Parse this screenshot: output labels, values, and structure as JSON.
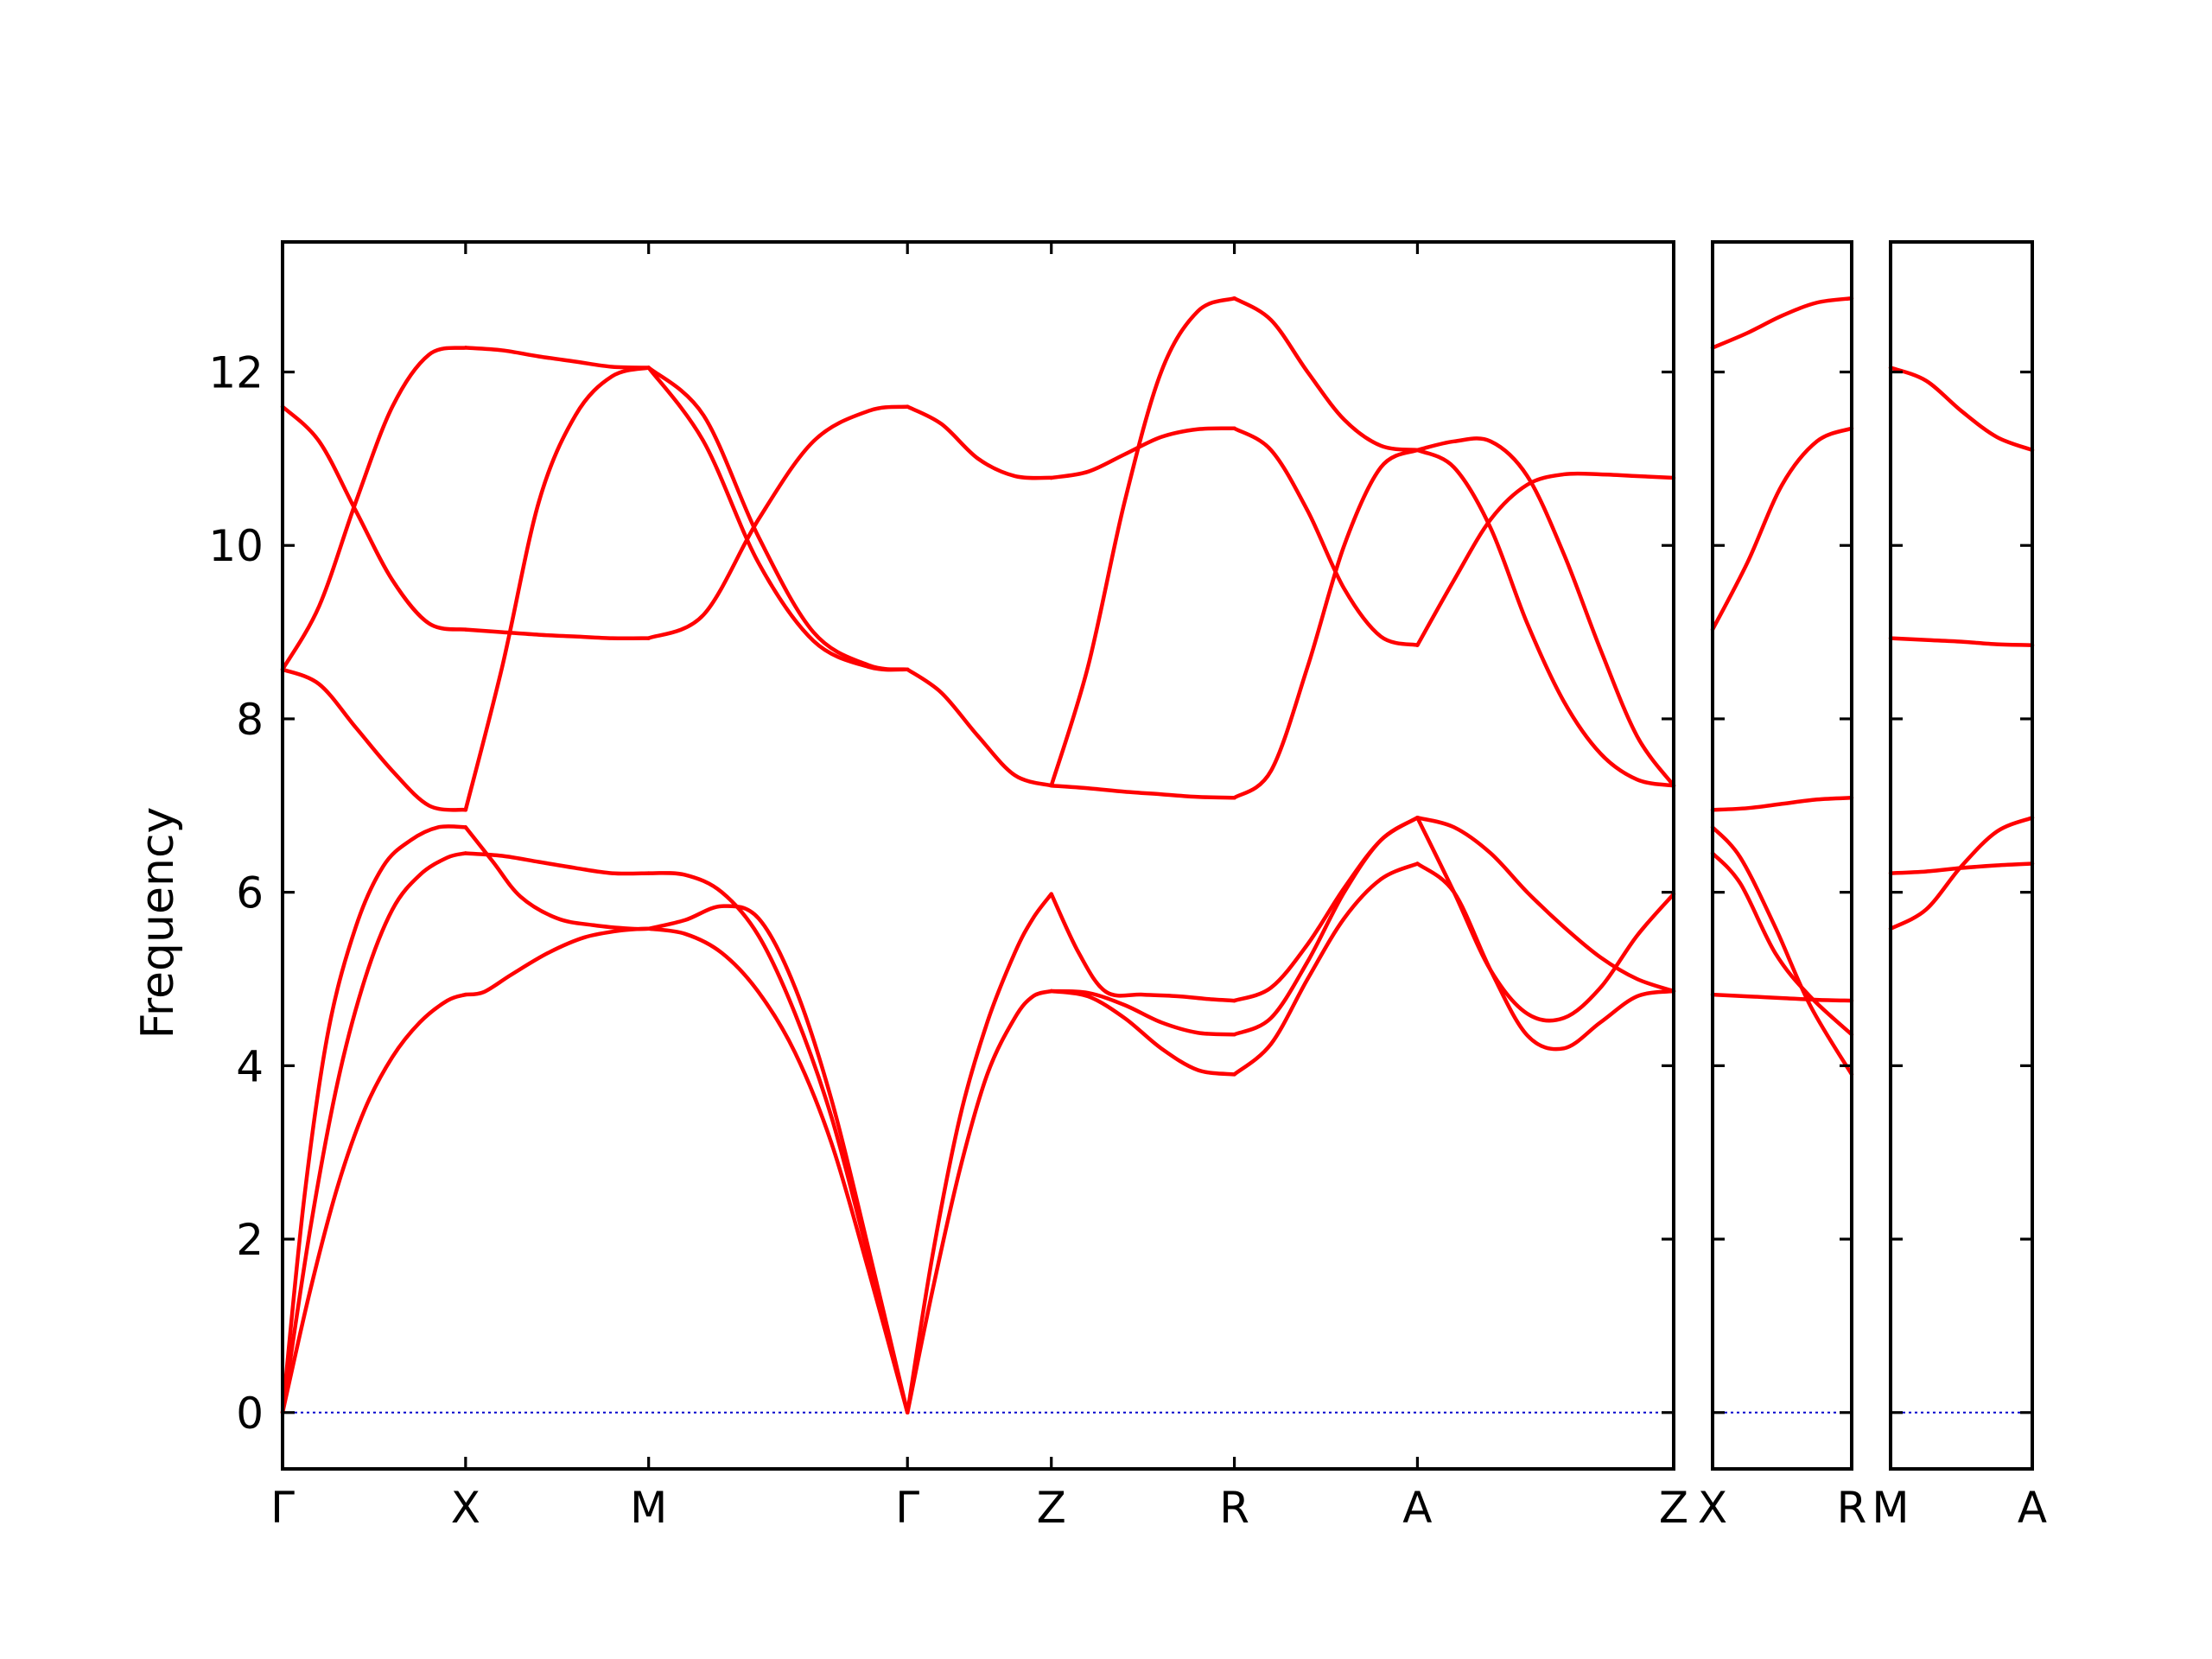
{
  "chart_data": {
    "type": "line",
    "ylabel": "Frequency",
    "xlabel": "",
    "ylim": [
      -0.65,
      13.5
    ],
    "yticks": [
      0,
      2,
      4,
      6,
      8,
      10,
      12
    ],
    "grid": false,
    "legend": "none",
    "colors": {
      "bands": "#ff0000",
      "zero_line": "#0000cc",
      "axes": "#000000"
    },
    "panels": [
      {
        "labels": [
          "Γ",
          "X",
          "M",
          "Γ",
          "Z",
          "R",
          "A",
          "Z"
        ],
        "positions": [
          0,
          1,
          2,
          3.414,
          4.2,
          5.2,
          6.2,
          7.6
        ],
        "bands": [
          {
            "x": [
              0,
              0.12,
              0.25,
              0.4,
              0.55,
              0.7,
              0.85,
              1.0
            ],
            "y": [
              0,
              2.5,
              4.4,
              5.6,
              6.3,
              6.6,
              6.75,
              6.75
            ]
          },
          {
            "x": [
              0,
              0.15,
              0.3,
              0.45,
              0.6,
              0.75,
              0.9,
              1.0
            ],
            "y": [
              0,
              2.1,
              3.8,
              5.0,
              5.8,
              6.2,
              6.4,
              6.45
            ]
          },
          {
            "x": [
              0,
              0.15,
              0.3,
              0.45,
              0.6,
              0.75,
              0.9,
              1.0
            ],
            "y": [
              0,
              1.4,
              2.6,
              3.5,
              4.1,
              4.5,
              4.75,
              4.82
            ]
          },
          {
            "x": [
              1.0,
              1.15,
              1.3,
              1.5,
              1.7,
              1.9,
              2.0
            ],
            "y": [
              6.75,
              6.35,
              5.95,
              5.7,
              5.62,
              5.58,
              5.58
            ]
          },
          {
            "x": [
              1.0,
              1.2,
              1.4,
              1.6,
              1.8,
              2.0
            ],
            "y": [
              6.45,
              6.42,
              6.35,
              6.28,
              6.22,
              6.22
            ]
          },
          {
            "x": [
              1.0,
              1.1,
              1.25,
              1.45,
              1.65,
              1.85,
              2.0
            ],
            "y": [
              4.82,
              4.85,
              5.05,
              5.3,
              5.48,
              5.56,
              5.58
            ]
          },
          {
            "x": [
              2.0,
              2.2,
              2.4,
              2.6,
              2.8,
              3.0,
              3.2,
              3.414
            ],
            "y": [
              5.58,
              5.68,
              5.84,
              5.7,
              4.9,
              3.6,
              1.9,
              0
            ]
          },
          {
            "x": [
              2.0,
              2.2,
              2.4,
              2.6,
              2.8,
              3.0,
              3.2,
              3.414
            ],
            "y": [
              6.22,
              6.2,
              6.0,
              5.5,
              4.6,
              3.4,
              1.8,
              0
            ]
          },
          {
            "x": [
              2.0,
              2.2,
              2.4,
              2.6,
              2.8,
              3.0,
              3.2,
              3.414
            ],
            "y": [
              5.58,
              5.52,
              5.3,
              4.85,
              4.15,
              3.1,
              1.65,
              0
            ]
          },
          {
            "x": [
              3.414,
              3.55,
              3.7,
              3.85,
              4.0,
              4.1,
              4.2
            ],
            "y": [
              0,
              1.8,
              3.4,
              4.5,
              5.3,
              5.7,
              5.98
            ]
          },
          {
            "x": [
              3.414,
              3.55,
              3.7,
              3.85,
              4.0,
              4.1,
              4.2
            ],
            "y": [
              0,
              1.4,
              2.8,
              3.9,
              4.55,
              4.8,
              4.86
            ]
          },
          {
            "x": [
              4.2,
              4.35,
              4.5,
              4.7,
              4.9,
              5.05,
              5.2
            ],
            "y": [
              5.98,
              5.3,
              4.85,
              4.82,
              4.8,
              4.77,
              4.75
            ]
          },
          {
            "x": [
              4.2,
              4.4,
              4.6,
              4.8,
              5.0,
              5.2
            ],
            "y": [
              4.86,
              4.84,
              4.7,
              4.5,
              4.38,
              4.36
            ]
          },
          {
            "x": [
              4.2,
              4.4,
              4.6,
              4.8,
              5.0,
              5.2
            ],
            "y": [
              4.86,
              4.8,
              4.55,
              4.2,
              3.95,
              3.9
            ]
          },
          {
            "x": [
              5.2,
              5.4,
              5.6,
              5.8,
              6.0,
              6.2
            ],
            "y": [
              4.75,
              4.9,
              5.4,
              6.05,
              6.6,
              6.86
            ]
          },
          {
            "x": [
              5.2,
              5.4,
              5.6,
              5.8,
              6.0,
              6.2
            ],
            "y": [
              4.36,
              4.55,
              5.2,
              6.0,
              6.6,
              6.86
            ]
          },
          {
            "x": [
              5.2,
              5.4,
              5.6,
              5.8,
              6.0,
              6.2
            ],
            "y": [
              3.9,
              4.25,
              5.0,
              5.7,
              6.15,
              6.33
            ]
          },
          {
            "x": [
              6.2,
              6.4,
              6.6,
              6.8,
              7.0,
              7.2,
              7.4,
              7.6
            ],
            "y": [
              6.86,
              6.75,
              6.45,
              6.0,
              5.6,
              5.25,
              5.0,
              4.86
            ]
          },
          {
            "x": [
              6.2,
              6.4,
              6.6,
              6.8,
              7.0,
              7.2,
              7.4,
              7.6
            ],
            "y": [
              6.86,
              6.0,
              5.1,
              4.6,
              4.55,
              4.9,
              5.5,
              5.98
            ]
          },
          {
            "x": [
              6.2,
              6.4,
              6.6,
              6.8,
              7.0,
              7.2,
              7.4,
              7.6
            ],
            "y": [
              6.33,
              6.0,
              5.1,
              4.35,
              4.2,
              4.5,
              4.8,
              4.86
            ]
          },
          {
            "x": [
              0,
              0.2,
              0.4,
              0.6,
              0.8,
              1.0
            ],
            "y": [
              8.57,
              8.4,
              7.9,
              7.4,
              7.0,
              6.95
            ]
          },
          {
            "x": [
              0,
              0.2,
              0.4,
              0.6,
              0.8,
              1.0
            ],
            "y": [
              8.57,
              9.3,
              10.5,
              11.6,
              12.2,
              12.28
            ]
          },
          {
            "x": [
              0,
              0.2,
              0.4,
              0.6,
              0.8,
              1.0
            ],
            "y": [
              11.6,
              11.2,
              10.4,
              9.6,
              9.1,
              9.03
            ]
          },
          {
            "x": [
              1.0,
              1.2,
              1.4,
              1.6,
              1.8,
              2.0
            ],
            "y": [
              12.28,
              12.25,
              12.18,
              12.12,
              12.06,
              12.05
            ]
          },
          {
            "x": [
              1.0,
              1.2,
              1.4,
              1.6,
              1.8,
              2.0
            ],
            "y": [
              9.03,
              9.0,
              8.97,
              8.95,
              8.93,
              8.93
            ]
          },
          {
            "x": [
              1.0,
              1.2,
              1.4,
              1.6,
              1.8,
              2.0
            ],
            "y": [
              6.95,
              8.6,
              10.5,
              11.5,
              11.95,
              12.05
            ]
          },
          {
            "x": [
              2.0,
              2.3,
              2.6,
              2.9,
              3.2,
              3.414
            ],
            "y": [
              12.05,
              11.2,
              9.8,
              8.9,
              8.6,
              8.57
            ]
          },
          {
            "x": [
              2.0,
              2.3,
              2.6,
              2.9,
              3.2,
              3.414
            ],
            "y": [
              12.05,
              11.5,
              10.1,
              9.0,
              8.62,
              8.57
            ]
          },
          {
            "x": [
              2.0,
              2.3,
              2.6,
              2.9,
              3.2,
              3.414
            ],
            "y": [
              8.93,
              9.2,
              10.3,
              11.2,
              11.55,
              11.6
            ]
          },
          {
            "x": [
              3.414,
              3.6,
              3.8,
              4.0,
              4.2
            ],
            "y": [
              8.57,
              8.3,
              7.8,
              7.35,
              7.23
            ]
          },
          {
            "x": [
              3.414,
              3.6,
              3.8,
              4.0,
              4.2
            ],
            "y": [
              11.6,
              11.4,
              11.0,
              10.8,
              10.78
            ]
          },
          {
            "x": [
              4.2,
              4.4,
              4.6,
              4.8,
              5.0,
              5.2
            ],
            "y": [
              7.23,
              7.2,
              7.16,
              7.13,
              7.1,
              7.09
            ]
          },
          {
            "x": [
              4.2,
              4.4,
              4.6,
              4.8,
              5.0,
              5.2
            ],
            "y": [
              7.23,
              8.6,
              10.5,
              12.0,
              12.7,
              12.85
            ]
          },
          {
            "x": [
              4.2,
              4.4,
              4.6,
              4.8,
              5.0,
              5.2
            ],
            "y": [
              10.78,
              10.85,
              11.05,
              11.25,
              11.34,
              11.35
            ]
          },
          {
            "x": [
              5.2,
              5.4,
              5.6,
              5.8,
              6.0,
              6.2
            ],
            "y": [
              12.85,
              12.6,
              12.0,
              11.45,
              11.15,
              11.1
            ]
          },
          {
            "x": [
              5.2,
              5.4,
              5.6,
              5.8,
              6.0,
              6.2
            ],
            "y": [
              11.35,
              11.1,
              10.4,
              9.5,
              8.95,
              8.85
            ]
          },
          {
            "x": [
              5.2,
              5.4,
              5.6,
              5.8,
              6.0,
              6.2
            ],
            "y": [
              7.09,
              7.4,
              8.6,
              10.0,
              10.9,
              11.1
            ]
          },
          {
            "x": [
              6.2,
              6.4,
              6.6,
              6.8,
              7.0,
              7.2,
              7.4,
              7.6
            ],
            "y": [
              11.1,
              11.2,
              11.2,
              10.8,
              9.9,
              8.8,
              7.8,
              7.23
            ]
          },
          {
            "x": [
              6.2,
              6.4,
              6.6,
              6.8,
              7.0,
              7.2,
              7.4,
              7.6
            ],
            "y": [
              11.1,
              10.9,
              10.2,
              9.1,
              8.2,
              7.6,
              7.3,
              7.23
            ]
          },
          {
            "x": [
              6.2,
              6.4,
              6.6,
              6.8,
              7.0,
              7.2,
              7.4,
              7.6
            ],
            "y": [
              8.85,
              9.6,
              10.3,
              10.7,
              10.82,
              10.82,
              10.8,
              10.78
            ]
          }
        ]
      },
      {
        "labels": [
          "X",
          "R"
        ],
        "positions": [
          0,
          1
        ],
        "bands": [
          {
            "x": [
              0,
              0.25,
              0.5,
              0.75,
              1.0
            ],
            "y": [
              12.28,
              12.45,
              12.65,
              12.8,
              12.85
            ]
          },
          {
            "x": [
              0,
              0.25,
              0.5,
              0.75,
              1.0
            ],
            "y": [
              9.03,
              9.8,
              10.7,
              11.2,
              11.35
            ]
          },
          {
            "x": [
              0,
              0.25,
              0.5,
              0.75,
              1.0
            ],
            "y": [
              6.95,
              6.97,
              7.02,
              7.07,
              7.09
            ]
          },
          {
            "x": [
              0,
              0.2,
              0.45,
              0.7,
              1.0
            ],
            "y": [
              6.75,
              6.4,
              5.6,
              4.7,
              3.9
            ]
          },
          {
            "x": [
              0,
              0.2,
              0.45,
              0.7,
              1.0
            ],
            "y": [
              6.45,
              6.1,
              5.3,
              4.8,
              4.36
            ]
          },
          {
            "x": [
              0,
              0.25,
              0.5,
              0.75,
              1.0
            ],
            "y": [
              4.82,
              4.8,
              4.78,
              4.76,
              4.75
            ]
          }
        ]
      },
      {
        "labels": [
          "M",
          "A"
        ],
        "positions": [
          0,
          1
        ],
        "bands": [
          {
            "x": [
              0,
              0.25,
              0.5,
              0.75,
              1.0
            ],
            "y": [
              12.05,
              11.9,
              11.55,
              11.25,
              11.1
            ]
          },
          {
            "x": [
              0,
              0.25,
              0.5,
              0.75,
              1.0
            ],
            "y": [
              8.93,
              8.91,
              8.89,
              8.86,
              8.85
            ]
          },
          {
            "x": [
              0,
              0.25,
              0.5,
              0.75,
              1.0
            ],
            "y": [
              6.22,
              6.24,
              6.28,
              6.31,
              6.33
            ]
          },
          {
            "x": [
              0,
              0.25,
              0.5,
              0.75,
              1.0
            ],
            "y": [
              5.58,
              5.8,
              6.3,
              6.7,
              6.86
            ]
          }
        ]
      }
    ]
  }
}
